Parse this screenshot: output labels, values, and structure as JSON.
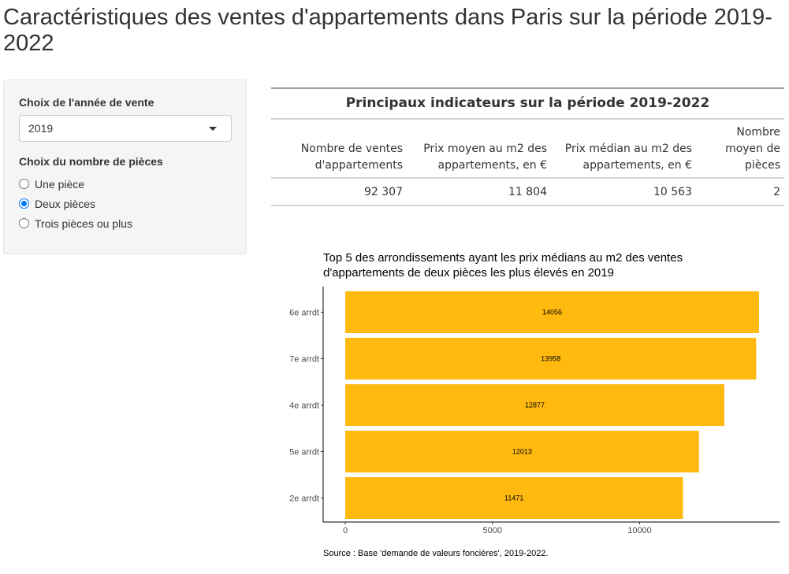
{
  "page": {
    "title": "Caractéristiques des ventes d'appartements dans Paris sur la période 2019-2022"
  },
  "sidebar": {
    "year_label": "Choix de l'année de vente",
    "year_value": "2019",
    "rooms_label": "Choix du nombre de pièces",
    "rooms_options": [
      {
        "label": "Une pièce",
        "checked": false
      },
      {
        "label": "Deux pièces",
        "checked": true
      },
      {
        "label": "Trois pièces ou plus",
        "checked": false
      }
    ]
  },
  "table": {
    "caption": "Principaux indicateurs sur la période 2019-2022",
    "headers": [
      "Nombre de ventes d'appartements",
      "Prix moyen au m2 des appartements, en €",
      "Prix médian au m2 des appartements, en €",
      "Nombre moyen de pièces"
    ],
    "row": [
      "92 307",
      "11 804",
      "10 563",
      "2"
    ]
  },
  "chart_data": {
    "type": "bar",
    "orientation": "horizontal",
    "title": "Top 5 des arrondissements ayant les prix médians au m2 des ventes d'appartements de deux pièces les plus élevés en 2019",
    "categories": [
      "6e arrdt",
      "7e arrdt",
      "4e arrdt",
      "5e arrdt",
      "2e arrdt"
    ],
    "values": [
      14056,
      13958,
      12877,
      12013,
      11471
    ],
    "xlim": [
      0,
      14056
    ],
    "xticks": [
      0,
      5000,
      10000
    ],
    "bar_color": "#ffb90f",
    "grid": false
  },
  "source": "Source : Base 'demande de valeurs foncières', 2019-2022."
}
